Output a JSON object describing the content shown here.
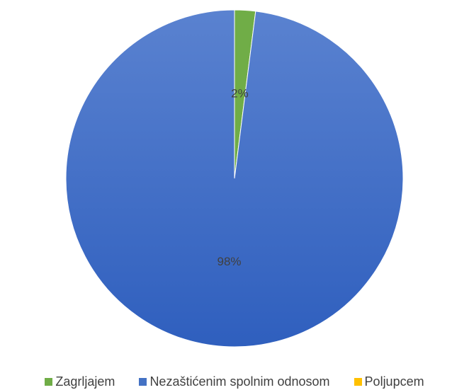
{
  "chart_data": {
    "type": "pie",
    "title": "",
    "categories": [
      "Zagrljajem",
      "Nezaštićenim spolnim odnosom",
      "Poljupcem"
    ],
    "values": [
      2,
      98,
      0
    ],
    "data_labels": [
      "2%",
      "98%",
      ""
    ],
    "colors": [
      "#70ad47",
      "#4472c4",
      "#ffc000"
    ],
    "legend_position": "bottom",
    "start_angle": "12 o'clock, clockwise"
  }
}
